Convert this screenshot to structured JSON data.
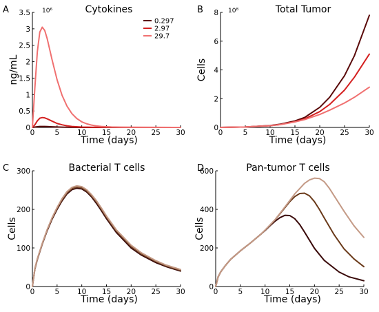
{
  "chart_data": [
    {
      "panel": "A",
      "type": "line",
      "title": "Cytokines",
      "xlabel": "Time (days)",
      "ylabel": "ng/mL",
      "y_multiplier": "10⁶",
      "xlim": [
        0,
        30
      ],
      "ylim": [
        0,
        3.5
      ],
      "xticks": [
        0,
        5,
        10,
        15,
        20,
        25,
        30
      ],
      "yticks": [
        0,
        0.5,
        1,
        1.5,
        2,
        2.5,
        3,
        3.5
      ],
      "legend": {
        "position": "top-right",
        "entries": [
          "0.297",
          "2.97",
          "29.7"
        ]
      },
      "series": [
        {
          "name": "0.297",
          "color": "#5a0a0a",
          "x": [
            0,
            0.5,
            1,
            1.5,
            2,
            2.5,
            3,
            4,
            5,
            6,
            8,
            10,
            30
          ],
          "y": [
            0,
            0.01,
            0.02,
            0.03,
            0.03,
            0.028,
            0.025,
            0.018,
            0.012,
            0.008,
            0.003,
            0.001,
            0
          ]
        },
        {
          "name": "2.97",
          "color": "#d42020",
          "x": [
            0,
            0.5,
            1,
            1.5,
            2,
            2.5,
            3,
            4,
            5,
            6,
            7,
            8,
            10,
            12,
            30
          ],
          "y": [
            0,
            0.08,
            0.2,
            0.28,
            0.3,
            0.29,
            0.26,
            0.19,
            0.12,
            0.08,
            0.05,
            0.03,
            0.01,
            0.005,
            0
          ]
        },
        {
          "name": "29.7",
          "color": "#f07070",
          "x": [
            0,
            0.5,
            1,
            1.5,
            2,
            2.5,
            3,
            4,
            5,
            6,
            7,
            8,
            9,
            10,
            11,
            12,
            13,
            14,
            16,
            18,
            20,
            30
          ],
          "y": [
            0,
            1.2,
            2.3,
            2.9,
            3.05,
            2.95,
            2.7,
            2.05,
            1.45,
            0.98,
            0.65,
            0.42,
            0.27,
            0.17,
            0.11,
            0.07,
            0.045,
            0.03,
            0.012,
            0.005,
            0.002,
            0
          ]
        }
      ]
    },
    {
      "panel": "B",
      "type": "line",
      "title": "Total Tumor",
      "xlabel": "Time (days)",
      "ylabel": "Cells",
      "y_multiplier": "10⁸",
      "xlim": [
        0,
        30
      ],
      "ylim": [
        0,
        8
      ],
      "xticks": [
        0,
        5,
        10,
        15,
        20,
        25,
        30
      ],
      "yticks": [
        0,
        2,
        4,
        6,
        8
      ],
      "series": [
        {
          "name": "0.297",
          "color": "#5a0a0a",
          "x": [
            0,
            5,
            10,
            12,
            15,
            17,
            20,
            22,
            25,
            27,
            30
          ],
          "y": [
            0,
            0.03,
            0.13,
            0.22,
            0.45,
            0.7,
            1.4,
            2.1,
            3.6,
            5.0,
            7.8
          ]
        },
        {
          "name": "2.97",
          "color": "#d42020",
          "x": [
            0,
            5,
            10,
            12,
            15,
            17,
            20,
            22,
            25,
            27,
            30
          ],
          "y": [
            0,
            0.03,
            0.12,
            0.2,
            0.4,
            0.6,
            1.1,
            1.6,
            2.6,
            3.5,
            5.1
          ]
        },
        {
          "name": "29.7",
          "color": "#f07070",
          "x": [
            0,
            5,
            10,
            12,
            15,
            17,
            20,
            22,
            25,
            27,
            30
          ],
          "y": [
            0,
            0.03,
            0.12,
            0.19,
            0.38,
            0.55,
            0.9,
            1.2,
            1.7,
            2.1,
            2.8
          ]
        }
      ]
    },
    {
      "panel": "C",
      "type": "line",
      "title": "Bacterial T cells",
      "xlabel": "Time (days)",
      "ylabel": "Cells",
      "xlim": [
        0,
        30
      ],
      "ylim": [
        0,
        300
      ],
      "xticks": [
        0,
        5,
        10,
        15,
        20,
        25,
        30
      ],
      "yticks": [
        0,
        100,
        200,
        300
      ],
      "series": [
        {
          "name": "0.297",
          "color": "#3a0a0a",
          "x": [
            0,
            0.5,
            1,
            2,
            3,
            4,
            5,
            6,
            7,
            8,
            9,
            10,
            11,
            12,
            13,
            14,
            15,
            17,
            20,
            22,
            25,
            27,
            30
          ],
          "y": [
            0,
            45,
            70,
            110,
            145,
            175,
            200,
            222,
            240,
            251,
            255,
            253,
            245,
            232,
            215,
            196,
            176,
            140,
            100,
            82,
            62,
            52,
            40
          ]
        },
        {
          "name": "2.97",
          "color": "#7a4a2a",
          "x": [
            0,
            0.5,
            1,
            2,
            3,
            4,
            5,
            6,
            7,
            8,
            9,
            10,
            11,
            12,
            13,
            14,
            15,
            17,
            20,
            22,
            25,
            27,
            30
          ],
          "y": [
            0,
            46,
            71,
            111,
            147,
            177,
            203,
            225,
            243,
            254,
            258,
            256,
            248,
            235,
            219,
            200,
            180,
            144,
            104,
            85,
            65,
            54,
            42
          ]
        },
        {
          "name": "29.7",
          "color": "#c49a86",
          "x": [
            0,
            0.5,
            1,
            2,
            3,
            4,
            5,
            6,
            7,
            8,
            9,
            10,
            11,
            12,
            13,
            14,
            15,
            17,
            20,
            22,
            25,
            27,
            30
          ],
          "y": [
            0,
            47,
            72,
            112,
            148,
            179,
            205,
            228,
            246,
            257,
            261,
            259,
            251,
            238,
            222,
            203,
            183,
            147,
            107,
            88,
            67,
            56,
            44
          ]
        }
      ]
    },
    {
      "panel": "D",
      "type": "line",
      "title": "Pan-tumor T cells",
      "xlabel": "Time (days)",
      "ylabel": "Cells",
      "xlim": [
        0,
        30
      ],
      "ylim": [
        0,
        600
      ],
      "xticks": [
        0,
        5,
        10,
        15,
        20,
        25,
        30
      ],
      "yticks": [
        0,
        200,
        400,
        600
      ],
      "series": [
        {
          "name": "0.297",
          "color": "#3a0a0a",
          "x": [
            0,
            0.5,
            1,
            2,
            3,
            5,
            7,
            9,
            10,
            11,
            12,
            13,
            14,
            15,
            16,
            17,
            18,
            19,
            20,
            22,
            25,
            27,
            30
          ],
          "y": [
            0,
            50,
            75,
            110,
            140,
            185,
            225,
            268,
            290,
            315,
            338,
            357,
            369,
            368,
            352,
            322,
            282,
            240,
            198,
            135,
            75,
            50,
            30
          ]
        },
        {
          "name": "2.97",
          "color": "#6a3a1a",
          "x": [
            0,
            0.5,
            1,
            2,
            3,
            5,
            7,
            9,
            10,
            12,
            14,
            15,
            16,
            17,
            18,
            19,
            20,
            21,
            22,
            24,
            26,
            28,
            30
          ],
          "y": [
            0,
            50,
            75,
            110,
            140,
            185,
            225,
            268,
            292,
            345,
            408,
            440,
            466,
            482,
            484,
            470,
            440,
            400,
            355,
            268,
            195,
            143,
            103
          ]
        },
        {
          "name": "29.7",
          "color": "#c49a86",
          "x": [
            0,
            0.5,
            1,
            2,
            3,
            5,
            7,
            9,
            10,
            12,
            14,
            16,
            18,
            19,
            20,
            21,
            22,
            23,
            24,
            26,
            28,
            30
          ],
          "y": [
            0,
            50,
            75,
            110,
            140,
            185,
            225,
            268,
            292,
            346,
            412,
            480,
            535,
            553,
            562,
            560,
            543,
            510,
            470,
            390,
            315,
            255
          ]
        }
      ]
    }
  ]
}
